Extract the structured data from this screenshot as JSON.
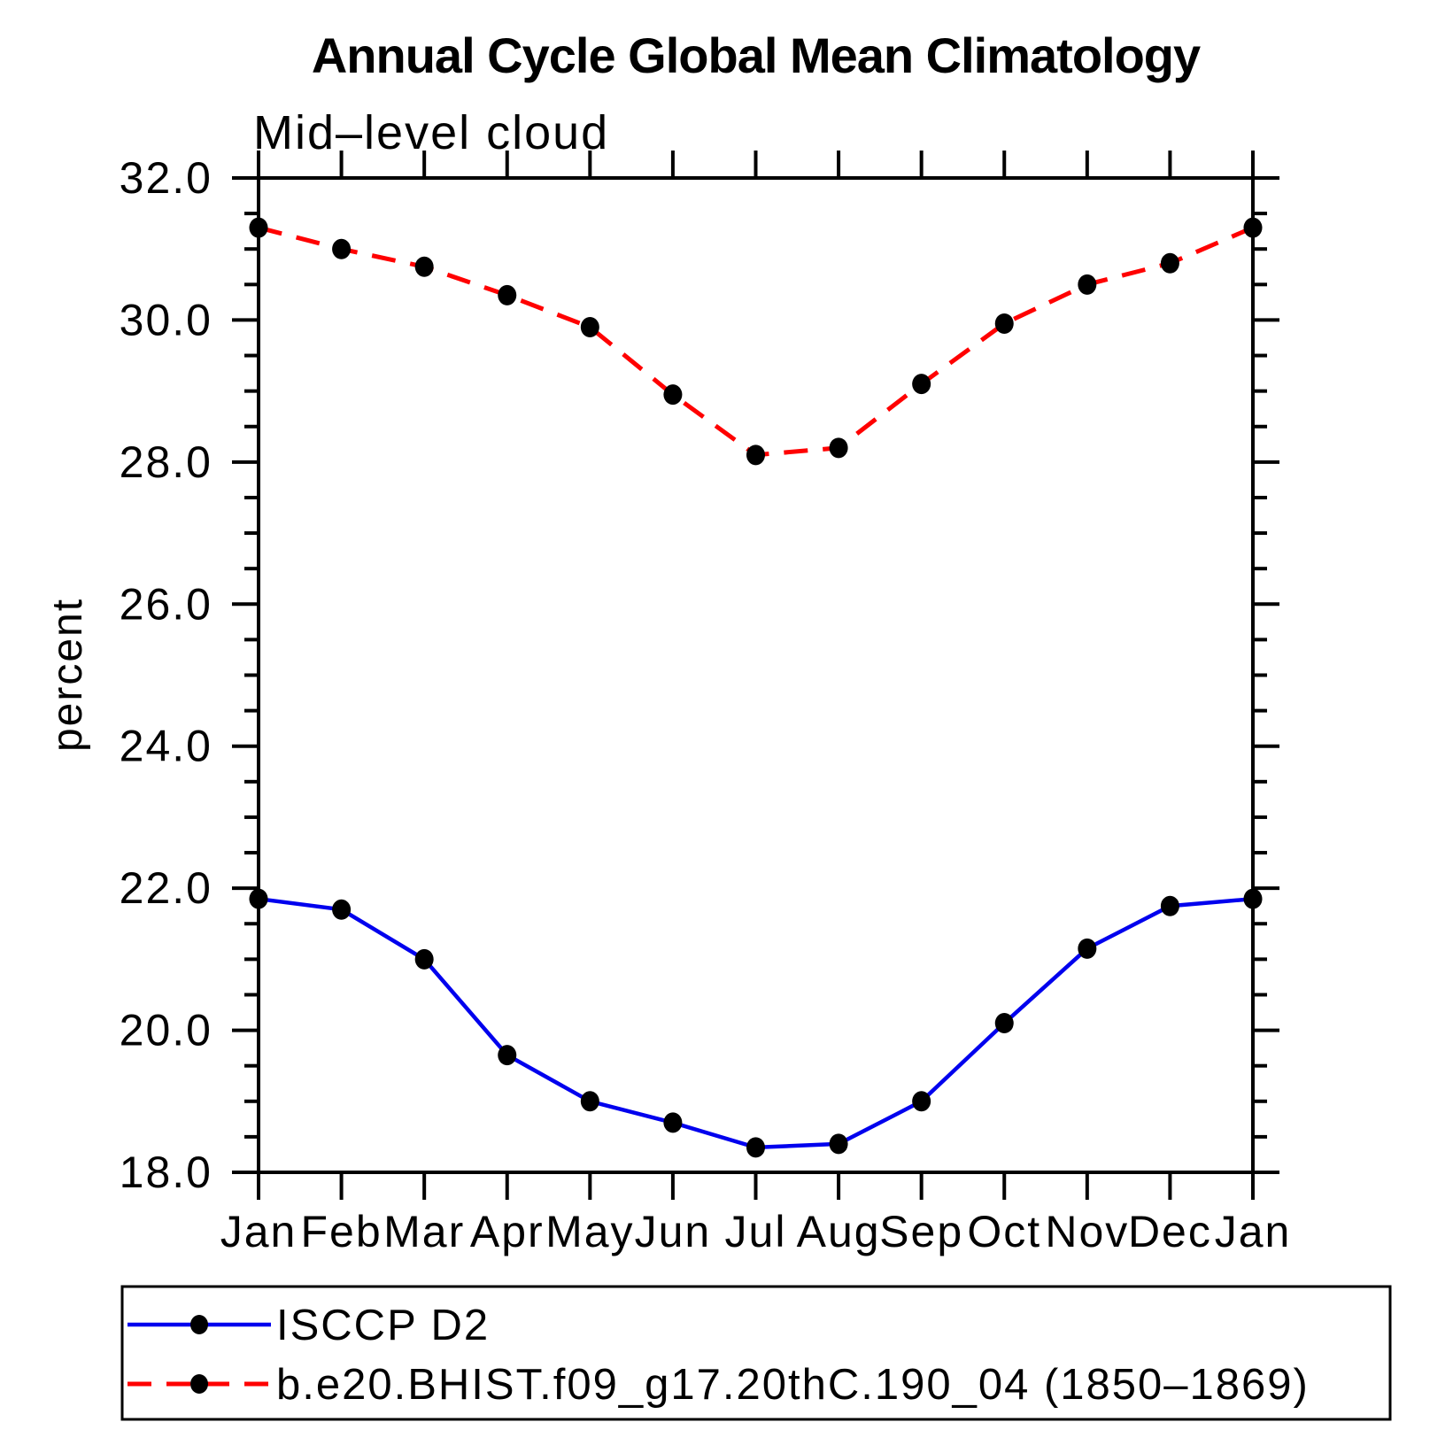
{
  "title": "Annual Cycle Global Mean Climatology",
  "subtitle": "Mid–level cloud",
  "ylabel": "percent",
  "chart_data": {
    "type": "line",
    "categories": [
      "Jan",
      "Feb",
      "Mar",
      "Apr",
      "May",
      "Jun",
      "Jul",
      "Aug",
      "Sep",
      "Oct",
      "Nov",
      "Dec",
      "Jan"
    ],
    "series": [
      {
        "name": "ISCCP D2",
        "color": "#0000ee",
        "line_style": "solid",
        "marker": "black-filled-circle",
        "values": [
          21.85,
          21.7,
          21.0,
          19.65,
          19.0,
          18.7,
          18.35,
          18.4,
          19.0,
          20.1,
          21.15,
          21.75,
          21.85
        ]
      },
      {
        "name": "b.e20.BHIST.f09_g17.20thC.190_04 (1850–1869)",
        "color": "#ff0000",
        "line_style": "dashed",
        "marker": "black-filled-circle",
        "values": [
          31.3,
          31.0,
          30.75,
          30.35,
          29.9,
          28.95,
          28.1,
          28.2,
          29.1,
          29.95,
          30.5,
          30.8,
          31.3
        ]
      }
    ],
    "xlabel": "",
    "ylabel": "percent",
    "ylim": [
      18.0,
      32.0
    ],
    "ytick_major_step": 2.0,
    "ytick_minor_step": 0.5,
    "ytick_labels": [
      "18.0",
      "20.0",
      "22.0",
      "24.0",
      "26.0",
      "28.0",
      "30.0",
      "32.0"
    ],
    "grid": false,
    "legend_position": "bottom-box"
  },
  "colors": {
    "background": "#ffffff",
    "axis": "#000000",
    "text": "#000000",
    "marker": "#000000",
    "series_blue": "#0000ee",
    "series_red": "#ff0000"
  }
}
